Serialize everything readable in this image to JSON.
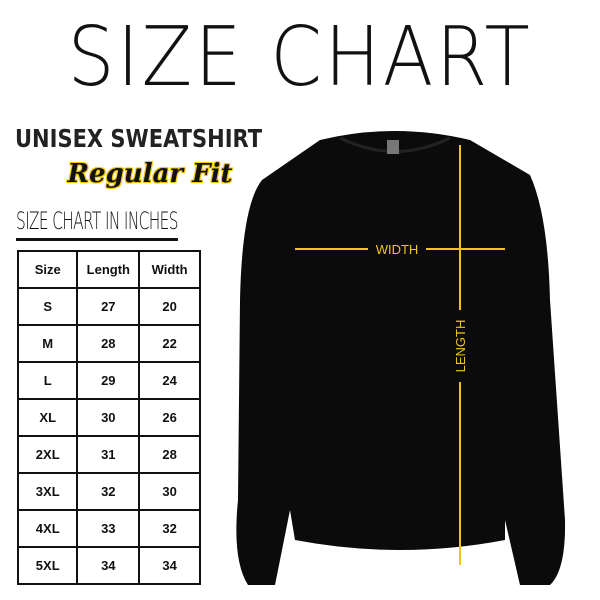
{
  "title": "SIZE CHART",
  "product": "UNISEX SWEATSHIRT",
  "fit": "Regular Fit",
  "table_title": "SIZE CHART IN INCHES",
  "table": {
    "headers": [
      "Size",
      "Length",
      "Width"
    ],
    "rows": [
      [
        "S",
        "27",
        "20"
      ],
      [
        "M",
        "28",
        "22"
      ],
      [
        "L",
        "29",
        "24"
      ],
      [
        "XL",
        "30",
        "26"
      ],
      [
        "2XL",
        "31",
        "28"
      ],
      [
        "3XL",
        "32",
        "30"
      ],
      [
        "4XL",
        "33",
        "32"
      ],
      [
        "5XL",
        "34",
        "34"
      ]
    ]
  },
  "measure": {
    "width_label": "WIDTH",
    "length_label": "LENGTH",
    "line_color": "#f0c419"
  },
  "garment_color": "#0b0b0b"
}
